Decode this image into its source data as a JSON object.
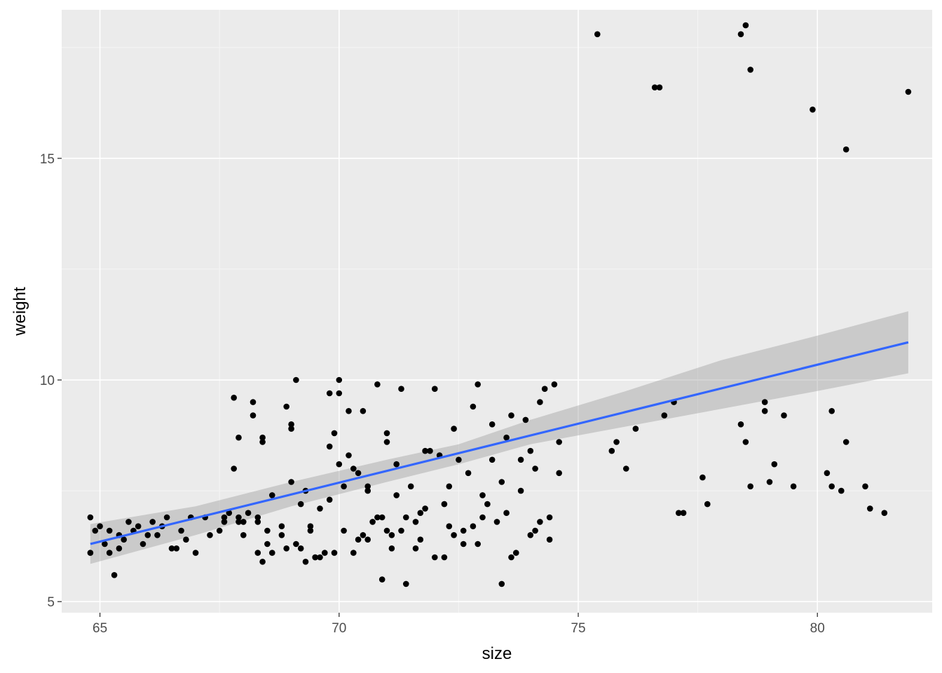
{
  "chart_data": {
    "type": "scatter",
    "xlabel": "size",
    "ylabel": "weight",
    "xlim": [
      64.2,
      82.4
    ],
    "ylim": [
      4.75,
      18.35
    ],
    "x_ticks": [
      65,
      70,
      75,
      80
    ],
    "x_tick_labels": [
      "65",
      "70",
      "75",
      "80"
    ],
    "y_ticks": [
      5,
      10,
      15
    ],
    "y_tick_labels": [
      "5",
      "10",
      "15"
    ],
    "x_minor_ticks": [
      67.5,
      72.5,
      77.5,
      82.5
    ],
    "y_minor_ticks": [
      7.5,
      12.5,
      17.5
    ],
    "grid": true,
    "legend": "none",
    "colors": {
      "panel_background": "#ebebeb",
      "grid_major": "#ffffff",
      "grid_minor": "#f5f5f5",
      "points": "#000000",
      "smooth_line": "#3366ff",
      "confidence_band": "#999999",
      "tick_text": "#4d4d4d",
      "tick_mark": "#333333"
    },
    "points": [
      [
        75.4,
        17.8
      ],
      [
        76.6,
        16.6
      ],
      [
        76.7,
        16.6
      ],
      [
        78.4,
        17.8
      ],
      [
        78.5,
        18.0
      ],
      [
        78.6,
        17.0
      ],
      [
        79.9,
        16.1
      ],
      [
        80.6,
        15.2
      ],
      [
        81.9,
        16.5
      ],
      [
        75.7,
        8.4
      ],
      [
        75.8,
        8.6
      ],
      [
        76.0,
        8.0
      ],
      [
        76.2,
        8.9
      ],
      [
        76.8,
        9.2
      ],
      [
        77.0,
        9.5
      ],
      [
        77.1,
        7.0
      ],
      [
        77.2,
        7.0
      ],
      [
        77.6,
        7.8
      ],
      [
        77.7,
        7.2
      ],
      [
        78.4,
        9.0
      ],
      [
        78.5,
        8.6
      ],
      [
        78.6,
        7.6
      ],
      [
        78.9,
        9.3
      ],
      [
        78.9,
        9.5
      ],
      [
        79.0,
        7.7
      ],
      [
        79.1,
        8.1
      ],
      [
        79.3,
        9.2
      ],
      [
        79.5,
        7.6
      ],
      [
        80.2,
        7.9
      ],
      [
        80.3,
        7.6
      ],
      [
        80.3,
        9.3
      ],
      [
        80.5,
        7.5
      ],
      [
        80.6,
        8.6
      ],
      [
        81.0,
        7.6
      ],
      [
        81.1,
        7.1
      ],
      [
        81.4,
        7.0
      ],
      [
        64.8,
        6.9
      ],
      [
        64.8,
        6.1
      ],
      [
        64.9,
        6.6
      ],
      [
        65.0,
        6.7
      ],
      [
        65.1,
        6.3
      ],
      [
        65.2,
        6.6
      ],
      [
        65.2,
        6.1
      ],
      [
        65.3,
        5.6
      ],
      [
        65.4,
        6.5
      ],
      [
        65.4,
        6.2
      ],
      [
        65.5,
        6.4
      ],
      [
        65.6,
        6.8
      ],
      [
        65.8,
        6.7
      ],
      [
        65.9,
        6.3
      ],
      [
        66.1,
        6.8
      ],
      [
        66.2,
        6.5
      ],
      [
        66.3,
        6.7
      ],
      [
        66.5,
        6.2
      ],
      [
        66.6,
        6.2
      ],
      [
        66.7,
        6.6
      ],
      [
        66.8,
        6.4
      ],
      [
        66.9,
        6.9
      ],
      [
        67.0,
        6.1
      ],
      [
        67.2,
        6.9
      ],
      [
        67.3,
        6.5
      ],
      [
        67.5,
        6.6
      ],
      [
        67.6,
        6.9
      ],
      [
        67.7,
        7.0
      ],
      [
        67.8,
        8.0
      ],
      [
        67.8,
        9.6
      ],
      [
        67.9,
        8.7
      ],
      [
        67.9,
        6.8
      ],
      [
        68.0,
        6.5
      ],
      [
        68.0,
        6.8
      ],
      [
        68.1,
        7.0
      ],
      [
        68.2,
        9.5
      ],
      [
        68.2,
        9.2
      ],
      [
        68.3,
        6.9
      ],
      [
        68.3,
        6.8
      ],
      [
        68.4,
        8.7
      ],
      [
        68.4,
        8.6
      ],
      [
        68.5,
        6.6
      ],
      [
        68.6,
        6.1
      ],
      [
        68.8,
        6.5
      ],
      [
        68.9,
        6.2
      ],
      [
        69.0,
        9.0
      ],
      [
        69.0,
        8.9
      ],
      [
        69.1,
        10.0
      ],
      [
        69.1,
        6.3
      ],
      [
        69.2,
        6.2
      ],
      [
        69.3,
        7.5
      ],
      [
        69.3,
        5.9
      ],
      [
        69.4,
        6.7
      ],
      [
        69.5,
        6.0
      ],
      [
        69.5,
        6.0
      ],
      [
        69.6,
        7.1
      ],
      [
        69.7,
        6.1
      ],
      [
        69.8,
        8.5
      ],
      [
        69.8,
        9.7
      ],
      [
        69.9,
        6.1
      ],
      [
        70.0,
        10.0
      ],
      [
        70.0,
        9.7
      ],
      [
        70.1,
        6.6
      ],
      [
        70.1,
        7.6
      ],
      [
        70.2,
        9.3
      ],
      [
        70.3,
        8.0
      ],
      [
        70.3,
        6.1
      ],
      [
        70.4,
        6.4
      ],
      [
        70.5,
        6.5
      ],
      [
        70.6,
        7.5
      ],
      [
        70.6,
        7.6
      ],
      [
        70.7,
        6.8
      ],
      [
        70.8,
        9.9
      ],
      [
        70.9,
        5.5
      ],
      [
        70.9,
        6.9
      ],
      [
        71.0,
        8.8
      ],
      [
        71.0,
        8.6
      ],
      [
        71.1,
        6.2
      ],
      [
        71.2,
        8.1
      ],
      [
        71.3,
        9.8
      ],
      [
        71.3,
        6.6
      ],
      [
        71.4,
        5.4
      ],
      [
        71.5,
        7.6
      ],
      [
        71.6,
        6.8
      ],
      [
        71.7,
        6.4
      ],
      [
        71.8,
        7.1
      ],
      [
        71.9,
        8.4
      ],
      [
        72.0,
        9.8
      ],
      [
        72.1,
        8.3
      ],
      [
        72.2,
        6.0
      ],
      [
        72.3,
        7.6
      ],
      [
        72.4,
        6.5
      ],
      [
        72.5,
        8.2
      ],
      [
        72.6,
        6.6
      ],
      [
        72.7,
        7.9
      ],
      [
        72.8,
        6.7
      ],
      [
        72.9,
        9.9
      ],
      [
        73.0,
        7.4
      ],
      [
        73.1,
        7.2
      ],
      [
        73.2,
        9.0
      ],
      [
        73.3,
        6.8
      ],
      [
        73.4,
        5.4
      ],
      [
        73.5,
        8.7
      ],
      [
        73.6,
        9.2
      ],
      [
        73.7,
        6.1
      ],
      [
        73.8,
        8.2
      ],
      [
        73.9,
        9.1
      ],
      [
        74.0,
        6.5
      ],
      [
        74.1,
        6.6
      ],
      [
        74.2,
        6.8
      ],
      [
        74.3,
        9.8
      ],
      [
        74.4,
        6.4
      ],
      [
        74.5,
        9.9
      ],
      [
        74.6,
        7.9
      ],
      [
        68.3,
        6.1
      ],
      [
        68.4,
        5.9
      ],
      [
        68.5,
        6.3
      ],
      [
        68.6,
        7.4
      ],
      [
        68.8,
        6.7
      ],
      [
        69.0,
        7.7
      ],
      [
        69.2,
        7.2
      ],
      [
        69.4,
        6.6
      ],
      [
        69.6,
        6.0
      ],
      [
        69.8,
        7.3
      ],
      [
        70.0,
        8.1
      ],
      [
        70.2,
        8.3
      ],
      [
        70.4,
        7.9
      ],
      [
        70.6,
        6.4
      ],
      [
        70.8,
        6.9
      ],
      [
        71.0,
        6.6
      ],
      [
        71.2,
        7.4
      ],
      [
        71.4,
        6.9
      ],
      [
        71.6,
        6.2
      ],
      [
        71.8,
        8.4
      ],
      [
        72.0,
        6.0
      ],
      [
        72.2,
        7.2
      ],
      [
        72.4,
        8.9
      ],
      [
        72.6,
        6.3
      ],
      [
        72.8,
        9.4
      ],
      [
        73.0,
        6.9
      ],
      [
        73.2,
        8.2
      ],
      [
        73.4,
        7.7
      ],
      [
        73.6,
        6.0
      ],
      [
        73.8,
        7.5
      ],
      [
        74.0,
        8.4
      ],
      [
        74.2,
        9.5
      ],
      [
        74.4,
        6.9
      ],
      [
        74.6,
        8.6
      ],
      [
        68.9,
        9.4
      ],
      [
        69.9,
        8.8
      ],
      [
        70.5,
        9.3
      ],
      [
        71.1,
        6.5
      ],
      [
        71.7,
        7.0
      ],
      [
        72.3,
        6.7
      ],
      [
        72.9,
        6.3
      ],
      [
        73.5,
        7.0
      ],
      [
        74.1,
        8.0
      ],
      [
        67.9,
        6.9
      ],
      [
        67.6,
        6.8
      ],
      [
        66.4,
        6.9
      ],
      [
        66.0,
        6.5
      ],
      [
        65.7,
        6.6
      ]
    ],
    "smooth_line": [
      [
        64.8,
        6.3
      ],
      [
        81.9,
        10.85
      ]
    ],
    "confidence_band": {
      "x": [
        64.8,
        67.0,
        69.0,
        71.0,
        72.5,
        74.0,
        76.0,
        78.0,
        80.0,
        81.9
      ],
      "lower": [
        5.85,
        6.5,
        7.15,
        7.7,
        8.1,
        8.55,
        8.95,
        9.35,
        9.75,
        10.15
      ],
      "upper": [
        6.75,
        7.15,
        7.7,
        8.2,
        8.55,
        9.1,
        9.75,
        10.45,
        11.0,
        11.55
      ]
    }
  }
}
